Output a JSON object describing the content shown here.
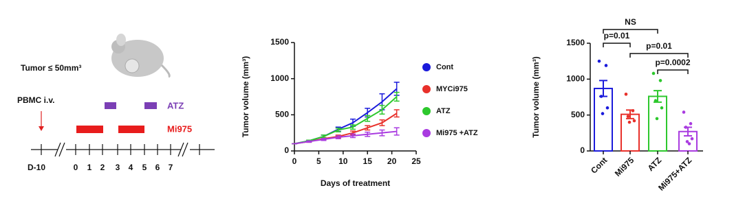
{
  "schematic": {
    "tumor": "Tumor ≤ 50mm³",
    "pbmc": "PBMC i.v.",
    "atz": "ATZ",
    "mi975": "Mi975",
    "days": [
      "D-10",
      "0",
      "1",
      "2",
      "3",
      "4",
      "5",
      "6",
      "7"
    ]
  },
  "chart_data": [
    {
      "type": "line",
      "y_label": "Tumor volume (mm³)",
      "x_label": "Days of treatment",
      "x": [
        0,
        3,
        6,
        9,
        12,
        15,
        18,
        21
      ],
      "xlim": [
        0,
        25
      ],
      "xticks": [
        0,
        5,
        10,
        15,
        20,
        25
      ],
      "ylim": [
        0,
        1500
      ],
      "yticks": [
        0,
        500,
        1000,
        1500
      ],
      "series": [
        {
          "name": "Cont",
          "color": "#1a1adb",
          "values": [
            100,
            140,
            200,
            300,
            390,
            530,
            680,
            860
          ],
          "errors": [
            0,
            10,
            20,
            30,
            50,
            60,
            110,
            90
          ]
        },
        {
          "name": "MYCi975",
          "color": "#e8302a",
          "values": [
            100,
            130,
            170,
            200,
            250,
            320,
            390,
            520
          ],
          "errors": [
            0,
            10,
            15,
            20,
            25,
            30,
            40,
            50
          ]
        },
        {
          "name": "ATZ",
          "color": "#2dc82d",
          "values": [
            100,
            140,
            200,
            290,
            330,
            450,
            570,
            750
          ],
          "errors": [
            0,
            10,
            20,
            25,
            30,
            40,
            60,
            60
          ]
        },
        {
          "name": "Mi975 +ATZ",
          "color": "#a93be0",
          "values": [
            100,
            130,
            160,
            190,
            210,
            230,
            250,
            270
          ],
          "errors": [
            0,
            10,
            15,
            20,
            25,
            30,
            40,
            50
          ]
        }
      ]
    },
    {
      "type": "bar",
      "y_label": "Tumor volume (mm³)",
      "categories": [
        "Cont",
        "Mi975",
        "ATZ",
        "Mi975+ATZ"
      ],
      "colors": [
        "#1a1adb",
        "#e8302a",
        "#2dc82d",
        "#a93be0"
      ],
      "values": [
        870,
        510,
        760,
        270
      ],
      "errors": [
        110,
        60,
        80,
        60
      ],
      "points": [
        [
          1250,
          1190,
          760,
          600,
          520
        ],
        [
          790,
          560,
          480,
          420,
          400
        ],
        [
          1080,
          980,
          700,
          600,
          450
        ],
        [
          540,
          380,
          330,
          170,
          130,
          100
        ]
      ],
      "ylim": [
        0,
        1500
      ],
      "yticks": [
        0,
        500,
        1000,
        1500
      ],
      "annotations": [
        "NS",
        "p=0.01",
        "p=0.01",
        "p=0.0002"
      ]
    }
  ]
}
